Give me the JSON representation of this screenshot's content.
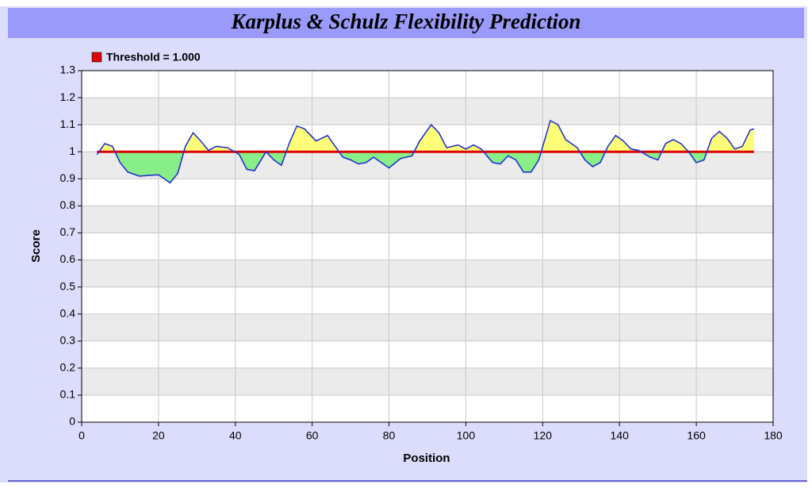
{
  "chart_data": {
    "type": "line",
    "title": "Karplus & Schulz Flexibility Prediction",
    "x_label": "Position",
    "y_label": "Score",
    "threshold": 1,
    "threshold_label": "Threshold  = 1.000",
    "threshold_color": "#dd0000",
    "x": [
      4,
      6,
      8,
      10,
      12,
      15,
      20,
      23,
      25,
      27,
      29,
      31,
      33,
      35,
      38,
      41,
      43,
      45,
      48,
      50,
      52,
      54,
      56,
      58,
      61,
      64,
      66,
      68,
      70,
      72,
      74,
      76,
      78,
      80,
      83,
      86,
      88,
      91,
      93,
      95,
      98,
      100,
      102,
      104,
      107,
      109,
      111,
      113,
      115,
      117,
      119,
      122,
      124,
      126,
      129,
      131,
      133,
      135,
      137,
      139,
      141,
      143,
      145,
      148,
      150,
      152,
      154,
      156,
      158,
      160,
      162,
      164,
      166,
      168,
      170,
      172,
      174,
      175
    ],
    "series": [
      {
        "name": "Score",
        "color": "#2233cc",
        "above_color": "#ffff77",
        "below_color": "#88ee88",
        "values": [
          0.99,
          1.03,
          1.02,
          0.96,
          0.925,
          0.91,
          0.915,
          0.885,
          0.92,
          1.02,
          1.07,
          1.04,
          1.005,
          1.02,
          1.015,
          0.99,
          0.935,
          0.93,
          1.0,
          0.97,
          0.95,
          1.03,
          1.095,
          1.085,
          1.04,
          1.06,
          1.02,
          0.98,
          0.97,
          0.955,
          0.96,
          0.98,
          0.96,
          0.94,
          0.975,
          0.985,
          1.04,
          1.1,
          1.07,
          1.015,
          1.025,
          1.01,
          1.025,
          1.01,
          0.96,
          0.955,
          0.985,
          0.97,
          0.925,
          0.925,
          0.97,
          1.115,
          1.1,
          1.045,
          1.015,
          0.97,
          0.945,
          0.96,
          1.02,
          1.06,
          1.04,
          1.01,
          1.005,
          0.98,
          0.97,
          1.03,
          1.045,
          1.03,
          1.0,
          0.96,
          0.97,
          1.05,
          1.075,
          1.05,
          1.01,
          1.02,
          1.08,
          1.085
        ]
      }
    ],
    "xlim": [
      0,
      180
    ],
    "xticks": [
      0,
      20,
      40,
      60,
      80,
      100,
      120,
      140,
      160,
      180
    ],
    "ylim": [
      0,
      1.3
    ],
    "yticks": [
      0,
      0.1,
      0.2,
      0.3,
      0.4,
      0.5,
      0.6,
      0.7,
      0.8,
      0.9,
      1,
      1.1,
      1.2,
      1.3
    ],
    "grid": true
  }
}
